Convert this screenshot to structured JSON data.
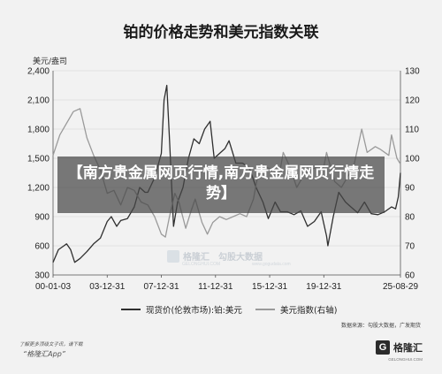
{
  "title": "铂的价格走势和美元指数关联",
  "left_unit": "美元/盎司",
  "overlay_text": "【南方贵金属网页行情,南方贵金属网页行情走势】",
  "source_text": "数据来源：勾股大数据，广发期货",
  "watermark": {
    "brand": "格隆汇",
    "brand2": "勾股大数据",
    "sub1": "GELONGHUI.COM",
    "sub2": "www.gogudata.com"
  },
  "footer": {
    "line1": "了解更多顶级文子讯，请下载",
    "line2": "“格隆汇App”",
    "logo_mark": "G",
    "logo_text": "格隆汇",
    "logo_sub": "GELONGHUI.COM"
  },
  "colors": {
    "platinum": "#2f2f2f",
    "usd_index": "#9a9a9a",
    "plot_bg": "#f2f2f2",
    "grid": "#d0d0d0"
  },
  "chart_data": {
    "type": "line",
    "title": "铂的价格走势和美元指数关联",
    "x_ticks": [
      "00-01-03",
      "03-12-31",
      "07-12-31",
      "11-12-31",
      "15-12-31",
      "19-12-31",
      "25-08-29"
    ],
    "y_left": {
      "label": "美元/盎司",
      "ticks": [
        300,
        600,
        900,
        1200,
        1500,
        1800,
        2100,
        2400
      ],
      "lim": [
        300,
        2400
      ]
    },
    "y_right": {
      "ticks": [
        60,
        70,
        80,
        90,
        100,
        110,
        120,
        130
      ],
      "lim": [
        60,
        130
      ]
    },
    "grid": true,
    "legend_position": "bottom",
    "series": [
      {
        "name": "现货价(伦敦市场):铂:美元",
        "axis": "left",
        "x": [
          2000.0,
          2000.4,
          2000.8,
          2001.0,
          2001.3,
          2001.6,
          2002.0,
          2002.5,
          2003.0,
          2003.5,
          2004.0,
          2004.3,
          2004.7,
          2005.0,
          2005.5,
          2006.0,
          2006.4,
          2006.8,
          2007.0,
          2007.5,
          2008.0,
          2008.2,
          2008.4,
          2008.6,
          2008.8,
          2008.9,
          2009.2,
          2009.6,
          2010.0,
          2010.4,
          2010.8,
          2011.2,
          2011.6,
          2011.9,
          2012.3,
          2012.7,
          2013.0,
          2013.5,
          2014.0,
          2014.5,
          2015.0,
          2015.5,
          2015.9,
          2016.4,
          2016.8,
          2017.3,
          2017.8,
          2018.3,
          2018.8,
          2019.3,
          2019.8,
          2020.2,
          2020.3,
          2020.7,
          2021.1,
          2021.6,
          2022.0,
          2022.5,
          2023.0,
          2023.5,
          2024.0,
          2024.5,
          2025.0,
          2025.3,
          2025.5,
          2025.66
        ],
        "y": [
          430,
          560,
          600,
          620,
          560,
          430,
          470,
          540,
          620,
          680,
          850,
          900,
          800,
          860,
          880,
          1000,
          1200,
          1150,
          1150,
          1300,
          1550,
          2100,
          2250,
          1700,
          1100,
          800,
          1050,
          1200,
          1500,
          1700,
          1650,
          1800,
          1880,
          1500,
          1550,
          1600,
          1680,
          1450,
          1450,
          1400,
          1200,
          1050,
          880,
          1050,
          950,
          950,
          920,
          960,
          800,
          850,
          950,
          700,
          600,
          900,
          1150,
          1050,
          1000,
          940,
          1050,
          930,
          920,
          950,
          1000,
          980,
          1100,
          1350
        ]
      },
      {
        "name": "美元指数(右轴)",
        "axis": "right",
        "x": [
          2000.0,
          2000.5,
          2001.0,
          2001.5,
          2002.0,
          2002.5,
          2003.0,
          2003.5,
          2004.0,
          2004.5,
          2005.0,
          2005.5,
          2006.0,
          2006.5,
          2007.0,
          2007.5,
          2008.0,
          2008.3,
          2008.6,
          2009.0,
          2009.3,
          2009.8,
          2010.2,
          2010.5,
          2011.0,
          2011.4,
          2011.8,
          2012.3,
          2012.8,
          2013.3,
          2013.8,
          2014.3,
          2014.8,
          2015.2,
          2015.7,
          2016.2,
          2016.7,
          2017.0,
          2017.5,
          2018.0,
          2018.5,
          2019.0,
          2019.5,
          2020.0,
          2020.2,
          2020.8,
          2021.3,
          2021.8,
          2022.2,
          2022.8,
          2023.2,
          2023.8,
          2024.2,
          2024.8,
          2025.0,
          2025.4,
          2025.66
        ],
        "y": [
          101,
          108,
          112,
          116,
          117,
          107,
          101,
          96,
          88,
          89,
          84,
          90,
          89,
          85,
          84,
          80,
          74,
          73,
          80,
          88,
          85,
          76,
          82,
          86,
          78,
          74,
          78,
          80,
          79,
          80,
          81,
          80,
          86,
          96,
          97,
          96,
          94,
          102,
          97,
          90,
          94,
          96,
          97,
          97,
          102,
          92,
          90,
          94,
          97,
          110,
          102,
          104,
          103,
          101,
          108,
          100,
          98
        ]
      }
    ]
  }
}
